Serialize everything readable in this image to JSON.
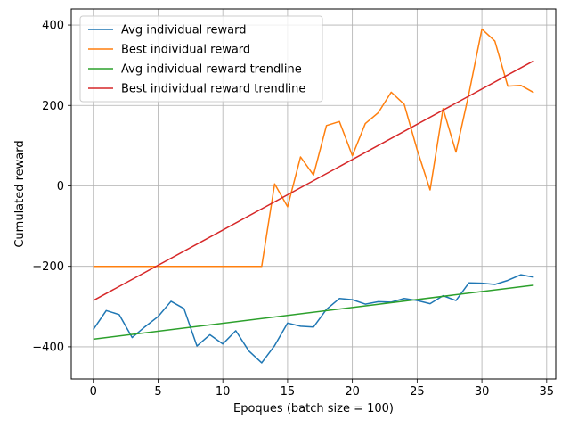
{
  "chart_data": {
    "type": "line",
    "title": "",
    "xlabel": "Epoques (batch size = 100)",
    "ylabel": "Cumulated reward",
    "xlim": [
      -1.7,
      35.7
    ],
    "ylim": [
      -480,
      440
    ],
    "xticks": [
      0,
      5,
      10,
      15,
      20,
      25,
      30,
      35
    ],
    "yticks": [
      -400,
      -200,
      0,
      200,
      400
    ],
    "grid": true,
    "legend_position": "top-left",
    "series": [
      {
        "name": "Avg individual reward",
        "color": "#1f77b4",
        "x": [
          0,
          1,
          2,
          3,
          4,
          5,
          6,
          7,
          8,
          9,
          10,
          11,
          12,
          13,
          14,
          15,
          16,
          17,
          18,
          19,
          20,
          21,
          22,
          23,
          24,
          25,
          26,
          27,
          28,
          29,
          30,
          31,
          32,
          33,
          34
        ],
        "values": [
          -357,
          -310,
          -320,
          -377,
          -350,
          -325,
          -287,
          -305,
          -398,
          -370,
          -393,
          -360,
          -410,
          -440,
          -397,
          -341,
          -349,
          -351,
          -307,
          -280,
          -283,
          -294,
          -288,
          -289,
          -280,
          -285,
          -293,
          -273,
          -285,
          -241,
          -242,
          -245,
          -235,
          -221,
          -227
        ]
      },
      {
        "name": "Best individual reward",
        "color": "#ff7f0e",
        "x": [
          0,
          1,
          2,
          3,
          4,
          5,
          6,
          7,
          8,
          9,
          10,
          11,
          12,
          13,
          14,
          15,
          16,
          17,
          18,
          19,
          20,
          21,
          22,
          23,
          24,
          25,
          26,
          27,
          28,
          29,
          30,
          31,
          32,
          33,
          34
        ],
        "values": [
          -200,
          -200,
          -200,
          -200,
          -200,
          -200,
          -200,
          -200,
          -200,
          -200,
          -200,
          -200,
          -200,
          -200,
          5,
          -52,
          72,
          27,
          150,
          160,
          75,
          155,
          182,
          233,
          203,
          90,
          -10,
          192,
          84,
          230,
          390,
          360,
          248,
          250,
          232
        ]
      },
      {
        "name": "Avg individual reward trendline",
        "color": "#2ca02c",
        "x": [
          0,
          34
        ],
        "values": [
          -381,
          -247
        ]
      },
      {
        "name": "Best individual reward trendline",
        "color": "#d62728",
        "x": [
          0,
          34
        ],
        "values": [
          -285,
          311
        ]
      }
    ]
  }
}
